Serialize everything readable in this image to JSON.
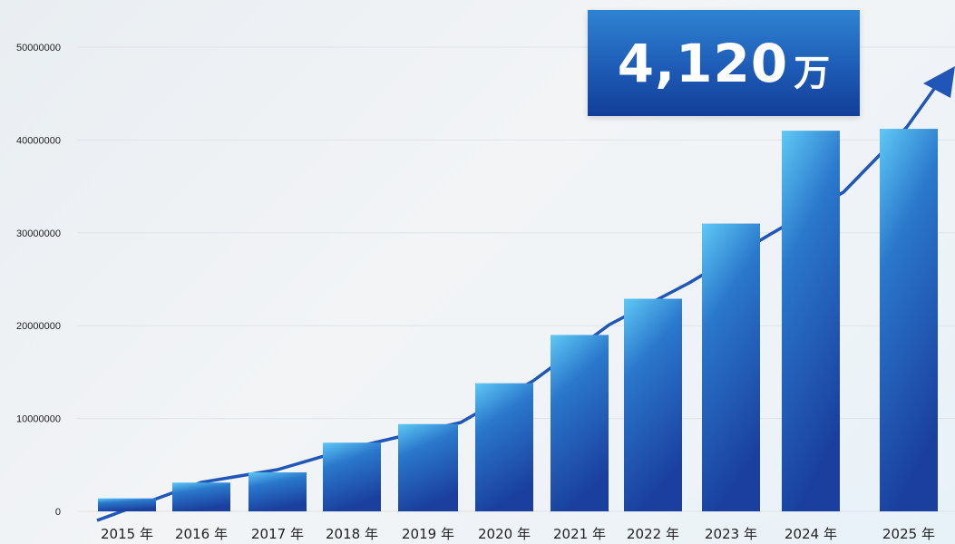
{
  "callout": {
    "value": "4,120",
    "unit": "万"
  },
  "chart_data": {
    "type": "bar",
    "title": "",
    "xlabel": "",
    "ylabel": "",
    "categories": [
      "2015 年",
      "2016 年",
      "2017 年",
      "2018 年",
      "2019 年",
      "2020 年",
      "2021 年",
      "2022 年",
      "2023 年",
      "2024 年",
      "2025 年"
    ],
    "values": [
      1400000,
      3100000,
      4200000,
      7400000,
      9400000,
      13800000,
      19000000,
      22900000,
      31000000,
      41000000,
      41200000
    ],
    "ylim": [
      0,
      52000000
    ],
    "yticks": [
      "0",
      "10000000",
      "20000000",
      "30000000",
      "40000000",
      "50000000"
    ],
    "grid": true,
    "trend_arrow": true,
    "colors": {
      "bar_top": "#5fc8f5",
      "bar_mid": "#2a78cc",
      "bar_bottom": "#1a3f9e",
      "arrow": "#1f56b8",
      "grid": "#dfe3e8"
    }
  }
}
